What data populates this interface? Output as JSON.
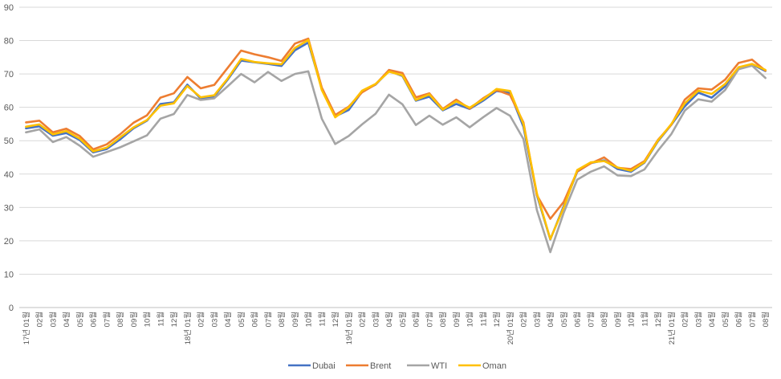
{
  "chart_data": {
    "type": "line",
    "title": "",
    "xlabel": "",
    "ylabel": "",
    "ylim": [
      0,
      90
    ],
    "yticks": [
      0,
      10,
      20,
      30,
      40,
      50,
      60,
      70,
      80,
      90
    ],
    "grid": true,
    "legend_position": "bottom",
    "categories": [
      "17년 01월",
      "02월",
      "03월",
      "04월",
      "05월",
      "06월",
      "07월",
      "08월",
      "09월",
      "10월",
      "11월",
      "12월",
      "18년 01월",
      "02월",
      "03월",
      "04월",
      "05월",
      "06월",
      "07월",
      "08월",
      "09월",
      "10월",
      "11월",
      "12월",
      "19년 01월",
      "02월",
      "03월",
      "04월",
      "05월",
      "06월",
      "07월",
      "08월",
      "09월",
      "10월",
      "11월",
      "12월",
      "20년 01월",
      "02월",
      "03월",
      "04월",
      "05월",
      "06월",
      "07월",
      "08월",
      "09월",
      "10월",
      "11월",
      "12월",
      "21년 01월",
      "02월",
      "03월",
      "04월",
      "05월",
      "06월",
      "07월",
      "08월"
    ],
    "series": [
      {
        "name": "Dubai",
        "color": "#4472C4",
        "values": [
          53.7,
          54.3,
          51.5,
          52.3,
          50.2,
          46.5,
          47.5,
          50.4,
          53.7,
          56.0,
          61.0,
          61.5,
          66.8,
          62.6,
          63.3,
          68.3,
          74.0,
          73.5,
          73.0,
          72.4,
          77.1,
          79.4,
          65.6,
          57.3,
          59.2,
          64.7,
          66.8,
          70.9,
          69.4,
          62.0,
          63.2,
          59.1,
          61.0,
          59.5,
          62.0,
          64.9,
          64.3,
          54.2,
          33.7,
          20.4,
          30.5,
          40.7,
          43.3,
          44.1,
          41.5,
          40.7,
          43.4,
          49.8,
          54.8,
          60.3,
          64.4,
          62.9,
          66.3,
          71.6,
          72.9,
          70.9
        ]
      },
      {
        "name": "Brent",
        "color": "#ED7D31",
        "values": [
          55.5,
          56.0,
          52.5,
          53.6,
          51.4,
          47.4,
          48.9,
          51.9,
          55.4,
          57.6,
          62.9,
          64.2,
          69.1,
          65.7,
          66.7,
          71.8,
          77.0,
          75.9,
          75.0,
          73.9,
          79.1,
          80.6,
          65.9,
          57.7,
          60.2,
          64.5,
          66.9,
          71.2,
          70.3,
          63.0,
          64.2,
          59.5,
          62.3,
          59.6,
          62.7,
          65.2,
          63.7,
          55.5,
          33.7,
          26.6,
          31.7,
          40.8,
          43.2,
          45.0,
          41.9,
          41.5,
          43.9,
          50.2,
          54.8,
          62.3,
          65.7,
          65.3,
          68.3,
          73.3,
          74.3,
          71.0
        ]
      },
      {
        "name": "WTI",
        "color": "#A5A5A5",
        "values": [
          52.5,
          53.4,
          49.6,
          51.1,
          48.5,
          45.2,
          46.6,
          48.0,
          49.8,
          51.6,
          56.6,
          58.0,
          63.7,
          62.2,
          62.7,
          66.3,
          70.0,
          67.5,
          70.6,
          67.9,
          70.0,
          70.8,
          56.6,
          49.0,
          51.4,
          54.9,
          58.1,
          63.8,
          60.9,
          54.7,
          57.5,
          54.8,
          57.0,
          54.0,
          57.0,
          59.8,
          57.5,
          50.5,
          29.2,
          16.6,
          28.5,
          38.3,
          40.7,
          42.3,
          39.6,
          39.4,
          41.4,
          47.0,
          52.0,
          59.0,
          62.4,
          61.7,
          65.2,
          71.4,
          72.5,
          68.8
        ]
      },
      {
        "name": "Oman",
        "color": "#FFC000",
        "values": [
          54.2,
          54.9,
          51.9,
          52.9,
          50.6,
          46.8,
          47.9,
          51.0,
          54.0,
          56.2,
          60.5,
          61.2,
          66.4,
          63.0,
          63.6,
          68.6,
          74.5,
          73.6,
          73.2,
          72.9,
          77.8,
          80.2,
          65.2,
          57.0,
          60.0,
          65.0,
          67.0,
          70.7,
          69.6,
          62.2,
          63.9,
          59.3,
          61.8,
          59.9,
          62.4,
          65.5,
          64.9,
          55.0,
          34.2,
          20.5,
          30.0,
          41.2,
          43.5,
          43.9,
          42.0,
          41.0,
          43.6,
          50.0,
          55.0,
          61.2,
          65.0,
          64.0,
          67.0,
          72.0,
          73.0,
          71.2
        ]
      }
    ]
  }
}
